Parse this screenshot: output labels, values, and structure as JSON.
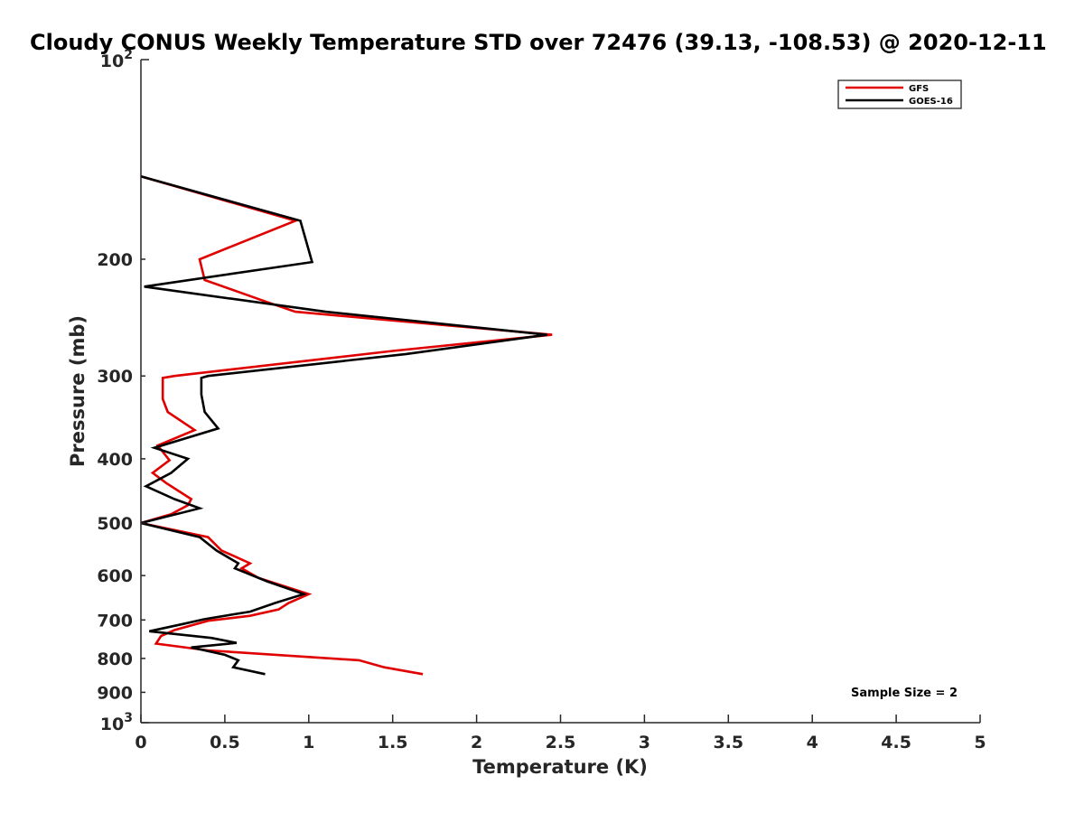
{
  "chart_data": {
    "type": "line",
    "title": "Cloudy CONUS Weekly Temperature STD over 72476 (39.13, -108.53) @ 2020-12-11",
    "xlabel": "Temperature (K)",
    "ylabel": "Pressure (mb)",
    "xlim": [
      0,
      5
    ],
    "ylim": [
      100,
      1000
    ],
    "y_scale": "log",
    "y_reversed": true,
    "x_ticks": [
      "0",
      "0.5",
      "1",
      "1.5",
      "2",
      "2.5",
      "3",
      "3.5",
      "4",
      "4.5",
      "5"
    ],
    "y_ticks": [
      {
        "value": 200,
        "label": "200"
      },
      {
        "value": 300,
        "label": "300"
      },
      {
        "value": 400,
        "label": "400"
      },
      {
        "value": 500,
        "label": "500"
      },
      {
        "value": 600,
        "label": "600"
      },
      {
        "value": 700,
        "label": "700"
      },
      {
        "value": 800,
        "label": "800"
      },
      {
        "value": 900,
        "label": "900"
      }
    ],
    "y_top_label": {
      "base": "10",
      "exp": "2"
    },
    "y_bottom_label": {
      "base": "10",
      "exp": "3"
    },
    "grid": false,
    "legend_position": "top-right",
    "annotation": "Sample Size = 2",
    "series": [
      {
        "name": "GFS",
        "color": "#e00000",
        "points": [
          [
            0.0,
            150
          ],
          [
            0.92,
            175
          ],
          [
            0.35,
            200
          ],
          [
            0.38,
            215
          ],
          [
            0.75,
            232
          ],
          [
            0.92,
            240
          ],
          [
            2.45,
            260
          ],
          [
            1.5,
            275
          ],
          [
            0.2,
            300
          ],
          [
            0.13,
            302
          ],
          [
            0.13,
            325
          ],
          [
            0.16,
            340
          ],
          [
            0.32,
            362
          ],
          [
            0.1,
            382
          ],
          [
            0.17,
            402
          ],
          [
            0.07,
            420
          ],
          [
            0.15,
            435
          ],
          [
            0.3,
            460
          ],
          [
            0.28,
            470
          ],
          [
            0.18,
            485
          ],
          [
            0.0,
            500
          ],
          [
            0.4,
            525
          ],
          [
            0.48,
            550
          ],
          [
            0.65,
            575
          ],
          [
            0.6,
            585
          ],
          [
            0.7,
            605
          ],
          [
            1.0,
            640
          ],
          [
            0.88,
            660
          ],
          [
            0.82,
            675
          ],
          [
            0.65,
            690
          ],
          [
            0.4,
            702
          ],
          [
            0.2,
            725
          ],
          [
            0.12,
            740
          ],
          [
            0.09,
            760
          ],
          [
            0.4,
            778
          ],
          [
            1.3,
            805
          ],
          [
            1.45,
            825
          ],
          [
            1.68,
            845
          ]
        ]
      },
      {
        "name": "GOES-16",
        "color": "#000000",
        "points": [
          [
            0.0,
            150
          ],
          [
            0.95,
            175
          ],
          [
            1.02,
            202
          ],
          [
            0.02,
            220
          ],
          [
            1.1,
            240
          ],
          [
            2.42,
            260
          ],
          [
            1.58,
            278
          ],
          [
            0.4,
            300
          ],
          [
            0.36,
            302
          ],
          [
            0.36,
            320
          ],
          [
            0.38,
            340
          ],
          [
            0.46,
            360
          ],
          [
            0.08,
            385
          ],
          [
            0.28,
            400
          ],
          [
            0.18,
            420
          ],
          [
            0.03,
            440
          ],
          [
            0.2,
            460
          ],
          [
            0.35,
            475
          ],
          [
            0.0,
            500
          ],
          [
            0.35,
            525
          ],
          [
            0.45,
            550
          ],
          [
            0.58,
            575
          ],
          [
            0.56,
            585
          ],
          [
            0.75,
            612
          ],
          [
            0.97,
            640
          ],
          [
            0.8,
            660
          ],
          [
            0.65,
            680
          ],
          [
            0.38,
            698
          ],
          [
            0.25,
            710
          ],
          [
            0.05,
            728
          ],
          [
            0.42,
            745
          ],
          [
            0.57,
            758
          ],
          [
            0.3,
            770
          ],
          [
            0.5,
            790
          ],
          [
            0.58,
            805
          ],
          [
            0.55,
            825
          ],
          [
            0.74,
            845
          ]
        ]
      }
    ]
  }
}
